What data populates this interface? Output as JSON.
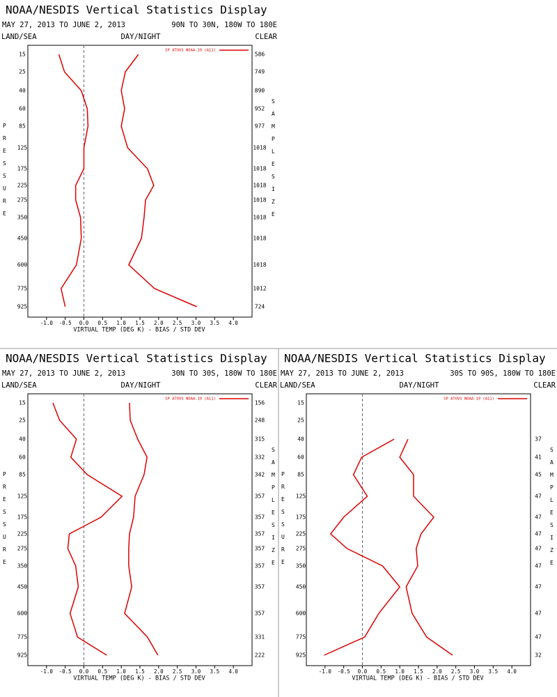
{
  "chart_data": [
    {
      "type": "line",
      "title": "NOAA/NESDIS Vertical Statistics Display",
      "subtitle": "MAY 27, 2013 TO JUNE 2, 2013",
      "region": "90N TO 30N, 180W TO 180E",
      "land_sea": "LAND/SEA",
      "day_night": "DAY/NIGHT",
      "sky": "CLEAR",
      "y_label": "PRESSURE",
      "y2_label": "SAMPLE SIZE",
      "x_label": "VIRTUAL TEMP (DEG K) - BIAS / STD DEV",
      "categories": [
        15,
        25,
        40,
        60,
        85,
        125,
        175,
        225,
        275,
        350,
        450,
        600,
        775,
        925
      ],
      "series": [
        {
          "name": "SP ATOVS NOAA-19 (A11)",
          "color": "#dd0000",
          "values": [
            -0.67,
            -0.52,
            -0.07,
            0.09,
            0.11,
            0.0,
            0.0,
            -0.22,
            -0.22,
            -0.09,
            -0.07,
            -0.2,
            -0.61,
            -0.5
          ],
          "std_dev": [
            1.46,
            1.11,
            1.0,
            1.09,
            1.0,
            1.17,
            1.7,
            1.87,
            1.65,
            1.61,
            1.54,
            1.2,
            1.89,
            3.02
          ]
        }
      ],
      "sample_size": [
        586,
        749,
        890,
        952,
        977,
        1018,
        1018,
        1018,
        1018,
        1018,
        1018,
        1018,
        1012,
        724
      ],
      "xlim": [
        -1.5,
        4.5
      ],
      "xticks": [
        {
          "value": -1,
          "label": "-1.0"
        },
        -0.5,
        {
          "value": 0,
          "label": "0.0"
        },
        0.5,
        {
          "value": 1,
          "label": "1.0"
        },
        1.5,
        {
          "value": 2,
          "label": "2.0"
        },
        2.5,
        {
          "value": 3,
          "label": "3.0"
        },
        3.5,
        {
          "value": 4,
          "label": "4.0"
        }
      ],
      "zero_line": true,
      "legend": "upper right"
    },
    {
      "type": "line",
      "title": "NOAA/NESDIS Vertical Statistics Display",
      "subtitle": "MAY 27, 2013 TO JUNE 2, 2013",
      "region": "30N TO 30S, 180W TO 180E",
      "land_sea": "LAND/SEA",
      "day_night": "DAY/NIGHT",
      "sky": "CLEAR",
      "y_label": "PRESSURE",
      "y2_label": "SAMPLE SIZE",
      "x_label": "VIRTUAL TEMP (DEG K) - BIAS / STD DEV",
      "categories": [
        15,
        25,
        40,
        60,
        85,
        125,
        175,
        225,
        275,
        350,
        450,
        600,
        775,
        925
      ],
      "series": [
        {
          "name": "SP ATOVS NOAA-19 (A11)",
          "color": "#dd0000",
          "values": [
            -0.83,
            -0.65,
            -0.2,
            -0.35,
            0.09,
            1.02,
            0.46,
            -0.39,
            -0.43,
            -0.22,
            -0.15,
            -0.37,
            -0.17,
            0.61
          ],
          "std_dev": [
            1.22,
            1.24,
            1.44,
            1.69,
            1.61,
            1.37,
            1.33,
            1.22,
            1.2,
            1.2,
            1.28,
            1.09,
            1.7,
            1.98
          ]
        }
      ],
      "sample_size": [
        156,
        248,
        315,
        332,
        342,
        357,
        357,
        357,
        357,
        357,
        357,
        357,
        331,
        222
      ],
      "xlim": [
        -1.5,
        4.5
      ],
      "xticks": [
        {
          "value": -1,
          "label": "-1.0"
        },
        -0.5,
        {
          "value": 0,
          "label": "0.0"
        },
        0.5,
        {
          "value": 1,
          "label": "1.0"
        },
        1.5,
        {
          "value": 2,
          "label": "2.0"
        },
        2.5,
        {
          "value": 3,
          "label": "3.0"
        },
        3.5,
        {
          "value": 4,
          "label": "4.0"
        }
      ],
      "zero_line": true,
      "legend": "upper right"
    },
    {
      "type": "line",
      "title": "NOAA/NESDIS Vertical Statistics Display",
      "subtitle": "MAY 27, 2013 TO JUNE 2, 2013",
      "region": "30S TO 90S, 180W TO 180E",
      "land_sea": "LAND/SEA",
      "day_night": "DAY/NIGHT",
      "sky": "CLEAR",
      "y_label": "PRESSURE",
      "y2_label": "SAMPLE SIZE",
      "x_label": "VIRTUAL TEMP (DEG K) - BIAS / STD DEV",
      "categories": [
        15,
        25,
        40,
        60,
        85,
        125,
        175,
        225,
        275,
        350,
        450,
        600,
        775,
        925
      ],
      "series": [
        {
          "name": "SP ATOVS NOAA-19 (A11)",
          "color": "#dd0000",
          "values": [
            null,
            null,
            0.85,
            -0.02,
            -0.24,
            0.13,
            -0.5,
            -0.85,
            -0.41,
            0.54,
            1.0,
            0.44,
            0.06,
            -1.02
          ],
          "std_dev": [
            null,
            null,
            1.22,
            1.0,
            1.37,
            1.37,
            1.91,
            1.57,
            1.44,
            1.48,
            1.17,
            1.33,
            1.72,
            2.41
          ]
        }
      ],
      "sample_size": [
        null,
        null,
        37,
        41,
        45,
        47,
        47,
        47,
        47,
        47,
        47,
        47,
        47,
        32
      ],
      "xlim": [
        -1.5,
        4.5
      ],
      "xticks": [
        {
          "value": -1,
          "label": "-1.0"
        },
        -0.5,
        {
          "value": 0,
          "label": "0.0"
        },
        0.5,
        {
          "value": 1,
          "label": "1.0"
        },
        1.5,
        {
          "value": 2,
          "label": "2.0"
        },
        2.5,
        {
          "value": 3,
          "label": "3.0"
        },
        3.5,
        {
          "value": 4,
          "label": "4.0"
        }
      ],
      "zero_line": true,
      "legend": "upper right"
    }
  ]
}
